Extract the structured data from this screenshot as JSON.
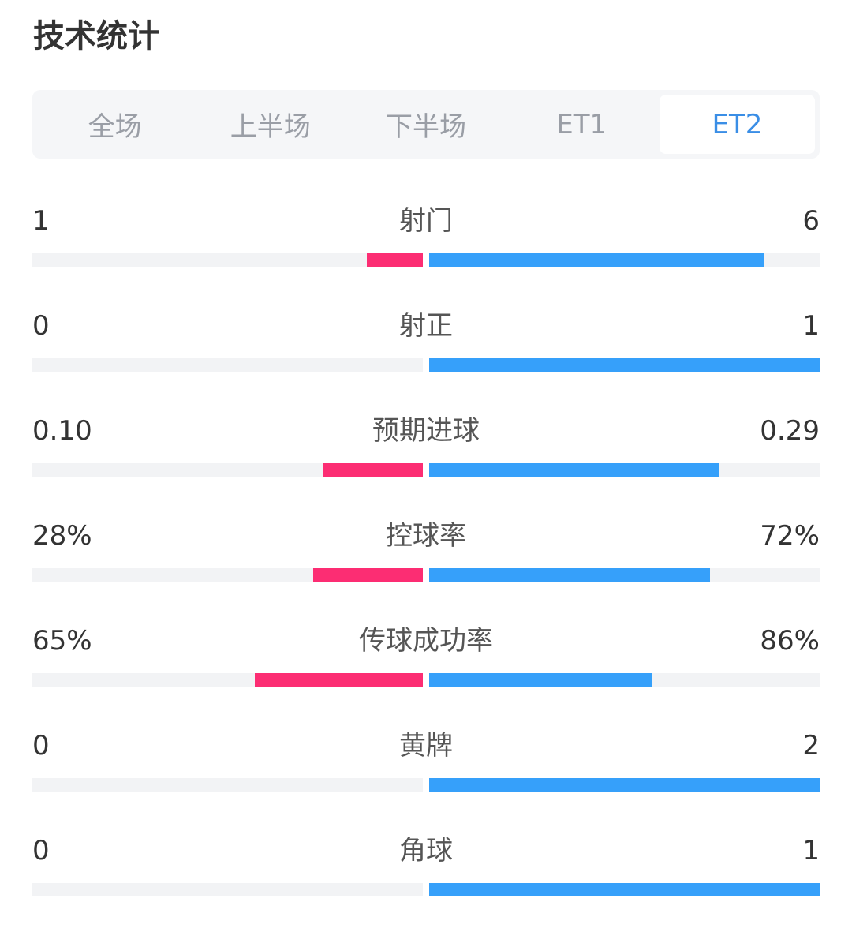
{
  "title": "技术统计",
  "tabs": [
    {
      "label": "全场",
      "active": false
    },
    {
      "label": "上半场",
      "active": false
    },
    {
      "label": "下半场",
      "active": false
    },
    {
      "label": "ET1",
      "active": false
    },
    {
      "label": "ET2",
      "active": true
    }
  ],
  "colors": {
    "home": "#fc2d73",
    "away": "#36a0fa",
    "active_tab": "#3a8ee6"
  },
  "stats": [
    {
      "label": "射门",
      "left": "1",
      "right": "6",
      "left_ratio": 0.143,
      "right_ratio": 0.857
    },
    {
      "label": "射正",
      "left": "0",
      "right": "1",
      "left_ratio": 0.0,
      "right_ratio": 1.0
    },
    {
      "label": "预期进球",
      "left": "0.10",
      "right": "0.29",
      "left_ratio": 0.256,
      "right_ratio": 0.744
    },
    {
      "label": "控球率",
      "left": "28%",
      "right": "72%",
      "left_ratio": 0.28,
      "right_ratio": 0.72
    },
    {
      "label": "传球成功率",
      "left": "65%",
      "right": "86%",
      "left_ratio": 0.43,
      "right_ratio": 0.57
    },
    {
      "label": "黄牌",
      "left": "0",
      "right": "2",
      "left_ratio": 0.0,
      "right_ratio": 1.0
    },
    {
      "label": "角球",
      "left": "0",
      "right": "1",
      "left_ratio": 0.0,
      "right_ratio": 1.0
    }
  ]
}
